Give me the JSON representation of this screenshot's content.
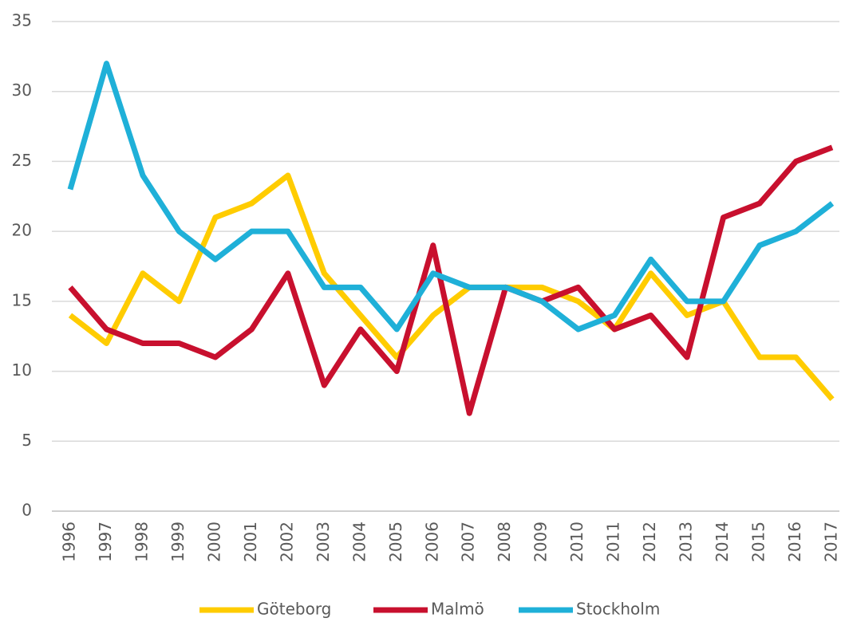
{
  "chart_data": {
    "type": "line",
    "categories": [
      "1996",
      "1997",
      "1998",
      "1999",
      "2000",
      "2001",
      "2002",
      "2003",
      "2004",
      "2005",
      "2006",
      "2007",
      "2008",
      "2009",
      "2010",
      "2011",
      "2012",
      "2013",
      "2014",
      "2015",
      "2016",
      "2017"
    ],
    "series": [
      {
        "name": "Göteborg",
        "color": "#ffcc00",
        "values": [
          14,
          12,
          17,
          15,
          21,
          22,
          24,
          17,
          14,
          11,
          14,
          16,
          16,
          16,
          15,
          13,
          17,
          14,
          15,
          11,
          11,
          8
        ]
      },
      {
        "name": "Malmö",
        "color": "#c8102e",
        "values": [
          16,
          13,
          12,
          12,
          11,
          13,
          17,
          9,
          13,
          10,
          19,
          7,
          16,
          15,
          16,
          13,
          14,
          11,
          21,
          22,
          25,
          26
        ]
      },
      {
        "name": "Stockholm",
        "color": "#1fb0d8",
        "values": [
          23,
          32,
          24,
          20,
          18,
          20,
          20,
          16,
          16,
          13,
          17,
          16,
          16,
          15,
          13,
          14,
          18,
          15,
          15,
          19,
          20,
          22
        ]
      }
    ],
    "ylim": [
      0,
      35
    ],
    "yticks": [
      0,
      5,
      10,
      15,
      20,
      25,
      30,
      35
    ],
    "grid": true,
    "legend": "bottom"
  }
}
